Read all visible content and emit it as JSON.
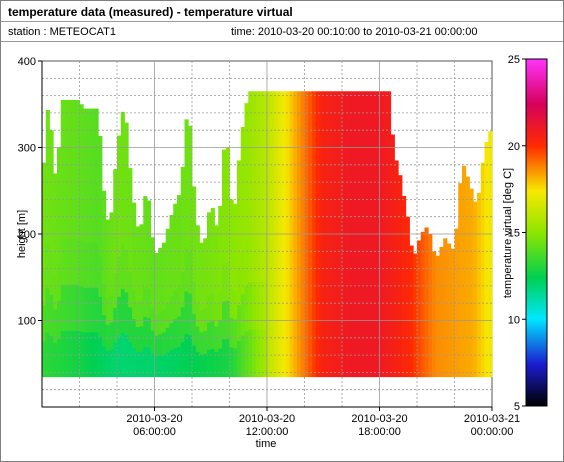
{
  "header": {
    "title": "temperature data (measured) - temperature virtual",
    "station": "station : METEOCAT1",
    "time_range": "time: 2010-03-20 00:10:00 to 2010-03-21 00:00:00"
  },
  "chart_data": {
    "type": "heatmap",
    "xlabel": "time",
    "ylabel": "height [m]",
    "x_ticks": [
      {
        "hours": 6,
        "line1": "2010-03-20",
        "line2": "06:00:00"
      },
      {
        "hours": 12,
        "line1": "2010-03-20",
        "line2": "12:00:00"
      },
      {
        "hours": 18,
        "line1": "2010-03-20",
        "line2": "18:00:00"
      },
      {
        "hours": 24,
        "line1": "2010-03-21",
        "line2": "00:00:00"
      }
    ],
    "y_ticks": [
      100,
      200,
      300,
      400
    ],
    "xlim_hours": [
      0,
      24
    ],
    "ylim": [
      0,
      400
    ],
    "data_bottom_height": 35,
    "grid": true,
    "colorbar": {
      "label": "temperature virtual [deg C]",
      "range": [
        5,
        25
      ],
      "ticks": [
        5,
        10,
        15,
        20,
        25
      ]
    },
    "top_height_m": [
      {
        "t": 0.0,
        "h": 210
      },
      {
        "t": 0.2,
        "h": 355
      },
      {
        "t": 0.5,
        "h": 320
      },
      {
        "t": 0.8,
        "h": 245
      },
      {
        "t": 1.0,
        "h": 355
      },
      {
        "t": 2.0,
        "h": 355
      },
      {
        "t": 2.2,
        "h": 345
      },
      {
        "t": 3.0,
        "h": 345
      },
      {
        "t": 3.3,
        "h": 250
      },
      {
        "t": 3.6,
        "h": 200
      },
      {
        "t": 4.0,
        "h": 300
      },
      {
        "t": 4.4,
        "h": 355
      },
      {
        "t": 4.8,
        "h": 250
      },
      {
        "t": 5.2,
        "h": 195
      },
      {
        "t": 5.6,
        "h": 260
      },
      {
        "t": 6.0,
        "h": 175
      },
      {
        "t": 6.5,
        "h": 190
      },
      {
        "t": 7.0,
        "h": 230
      },
      {
        "t": 7.4,
        "h": 250
      },
      {
        "t": 7.8,
        "h": 360
      },
      {
        "t": 8.2,
        "h": 220
      },
      {
        "t": 8.6,
        "h": 180
      },
      {
        "t": 9.0,
        "h": 240
      },
      {
        "t": 9.4,
        "h": 200
      },
      {
        "t": 9.8,
        "h": 330
      },
      {
        "t": 10.2,
        "h": 210
      },
      {
        "t": 10.6,
        "h": 310
      },
      {
        "t": 11.0,
        "h": 365
      },
      {
        "t": 12.0,
        "h": 365
      },
      {
        "t": 14.0,
        "h": 365
      },
      {
        "t": 18.5,
        "h": 365
      },
      {
        "t": 18.8,
        "h": 290
      },
      {
        "t": 19.0,
        "h": 280
      },
      {
        "t": 19.5,
        "h": 220
      },
      {
        "t": 19.8,
        "h": 170
      },
      {
        "t": 20.2,
        "h": 200
      },
      {
        "t": 20.6,
        "h": 210
      },
      {
        "t": 21.0,
        "h": 170
      },
      {
        "t": 21.5,
        "h": 195
      },
      {
        "t": 22.0,
        "h": 180
      },
      {
        "t": 22.4,
        "h": 285
      },
      {
        "t": 22.8,
        "h": 260
      },
      {
        "t": 23.2,
        "h": 230
      },
      {
        "t": 23.6,
        "h": 300
      },
      {
        "t": 24.0,
        "h": 325
      }
    ],
    "temperature_by_time": [
      {
        "t": 0,
        "c": 14.5
      },
      {
        "t": 3,
        "c": 14.0
      },
      {
        "t": 4,
        "c": 14.5
      },
      {
        "t": 6,
        "c": 14.2
      },
      {
        "t": 9,
        "c": 14.6
      },
      {
        "t": 11,
        "c": 15.2
      },
      {
        "t": 12,
        "c": 16.0
      },
      {
        "t": 13,
        "c": 17.5
      },
      {
        "t": 14,
        "c": 19.0
      },
      {
        "t": 15,
        "c": 20.5
      },
      {
        "t": 16.5,
        "c": 21.0
      },
      {
        "t": 18,
        "c": 21.0
      },
      {
        "t": 19.5,
        "c": 20.2
      },
      {
        "t": 21,
        "c": 18.7
      },
      {
        "t": 23,
        "c": 18.3
      },
      {
        "t": 24,
        "c": 17.2
      }
    ],
    "cool_surface_layer": [
      {
        "t": 0,
        "c": 13.0
      },
      {
        "t": 2,
        "c": 12.5
      },
      {
        "t": 4,
        "c": 11.5
      },
      {
        "t": 7,
        "c": 11.8
      },
      {
        "t": 10,
        "c": 12.5
      },
      {
        "t": 12,
        "c": 15.5
      }
    ]
  }
}
